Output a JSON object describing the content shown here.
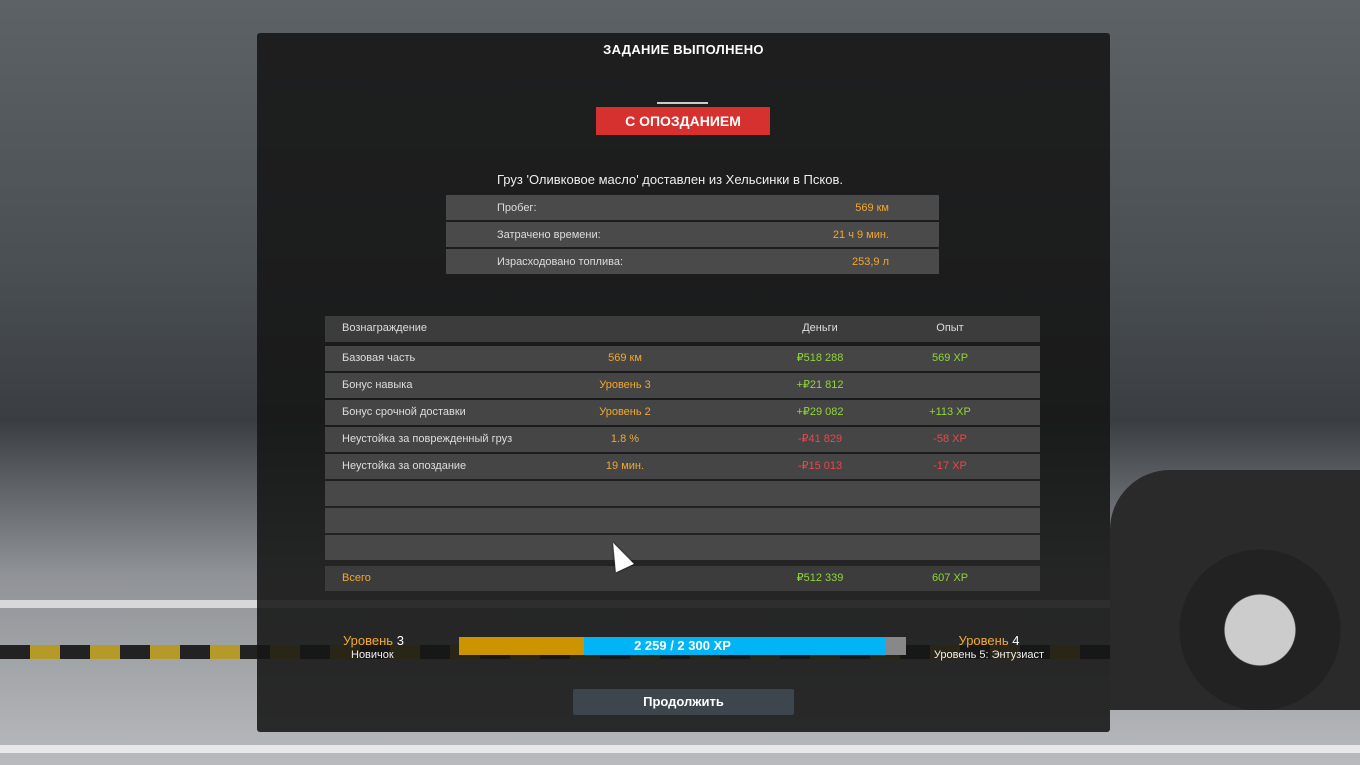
{
  "title": "ЗАДАНИЕ ВЫПОЛНЕНО",
  "status_badge": "С ОПОЗДАНИЕМ",
  "cargo_text": "Груз 'Оливковое масло' доставлен из Хельсинки в Псков.",
  "stats": [
    {
      "label": "Пробег:",
      "value": "569 км"
    },
    {
      "label": "Затрачено времени:",
      "value": "21 ч 9 мин."
    },
    {
      "label": "Израсходовано топлива:",
      "value": "253,9 л"
    }
  ],
  "table": {
    "headers": [
      "Вознаграждение",
      "",
      "Деньги",
      "Опыт"
    ],
    "rows": [
      {
        "name": "Базовая часть",
        "detail": "569 км",
        "money": "₽518 288",
        "xp": "569 XP",
        "tone": "g"
      },
      {
        "name": "Бонус навыка",
        "detail": "Уровень 3",
        "money": "+₽21 812",
        "xp": "",
        "tone": "g"
      },
      {
        "name": "Бонус срочной доставки",
        "detail": "Уровень 2",
        "money": "+₽29 082",
        "xp": "+113 XP",
        "tone": "g"
      },
      {
        "name": "Неустойка за поврежденный груз",
        "detail": "1.8 %",
        "money": "-₽41 829",
        "xp": "-58 XP",
        "tone": "r"
      },
      {
        "name": "Неустойка за опоздание",
        "detail": "19 мин.",
        "money": "-₽15 013",
        "xp": "-17 XP",
        "tone": "r"
      }
    ],
    "total": {
      "label": "Всего",
      "money": "₽512 339",
      "xp": "607 XP"
    }
  },
  "progress": {
    "current_level_word": "Уровень",
    "current_level": "3",
    "current_rank": "Новичок",
    "next_level_word": "Уровень",
    "next_level": "4",
    "next_rank": "Уровень 5: Энтузиаст",
    "text": "2 259 / 2 300 XP",
    "previous_fraction": 0.28,
    "gained_fraction": 0.675,
    "current_xp": 2259,
    "max_xp": 2300
  },
  "continue_label": "Продолжить",
  "colors": {
    "accent": "#f0a830",
    "positive": "#8fd63a",
    "negative": "#e8474a",
    "badge": "#d7312f",
    "xp_bar": "#00b4f5"
  }
}
